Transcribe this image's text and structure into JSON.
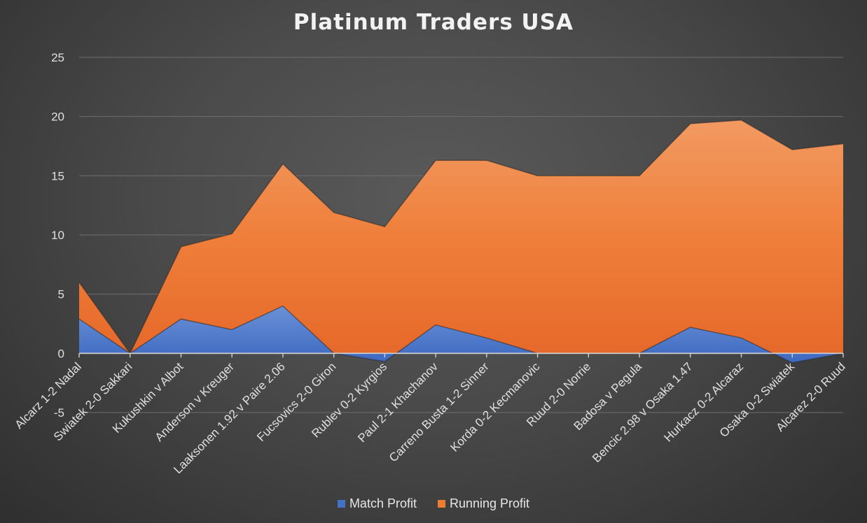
{
  "chart_data": {
    "type": "area",
    "title": "Platinum Traders USA",
    "xlabel": "",
    "ylabel": "",
    "ylim": [
      -5,
      25
    ],
    "yticks": [
      -5,
      0,
      5,
      10,
      15,
      20,
      25
    ],
    "grid": true,
    "legend_position": "bottom",
    "categories": [
      "Alcarz 1-2 Nadal",
      "Swiatek 2-0 Sakkari",
      "Kukushkin v Albot",
      "Anderson v Kreuger",
      "Laaksonen 1.92 v Paire 2.06",
      "Fucsovics 2-0 Giron",
      "Rublev 0-2 Kyrgios",
      "Paul 2-1 Khachanov",
      "Carreno Busta 1-2 Sinner",
      "Korda 0-2 Kecmanovic",
      "Ruud 2-0 Norrie",
      "Badosa v Pegula",
      "Bencic 2.98 v Osaka 1.47",
      "Hurkacz 0-2 Alcaraz",
      "Osaka 0-2 Swiatek",
      "Alcarez 2-0 Ruud"
    ],
    "series": [
      {
        "name": "Match Profit",
        "color": "#4472c4",
        "values": [
          2.9,
          0,
          2.9,
          2.0,
          4.0,
          0,
          -0.7,
          2.4,
          1.3,
          0,
          0,
          0,
          2.2,
          1.3,
          -0.8,
          0
        ]
      },
      {
        "name": "Running Profit",
        "color": "#ed7d31",
        "values": [
          6.0,
          0,
          9.0,
          10.1,
          16.0,
          11.9,
          10.7,
          16.3,
          16.3,
          15.0,
          15.0,
          15.0,
          19.4,
          19.7,
          17.2,
          17.7
        ]
      }
    ]
  }
}
